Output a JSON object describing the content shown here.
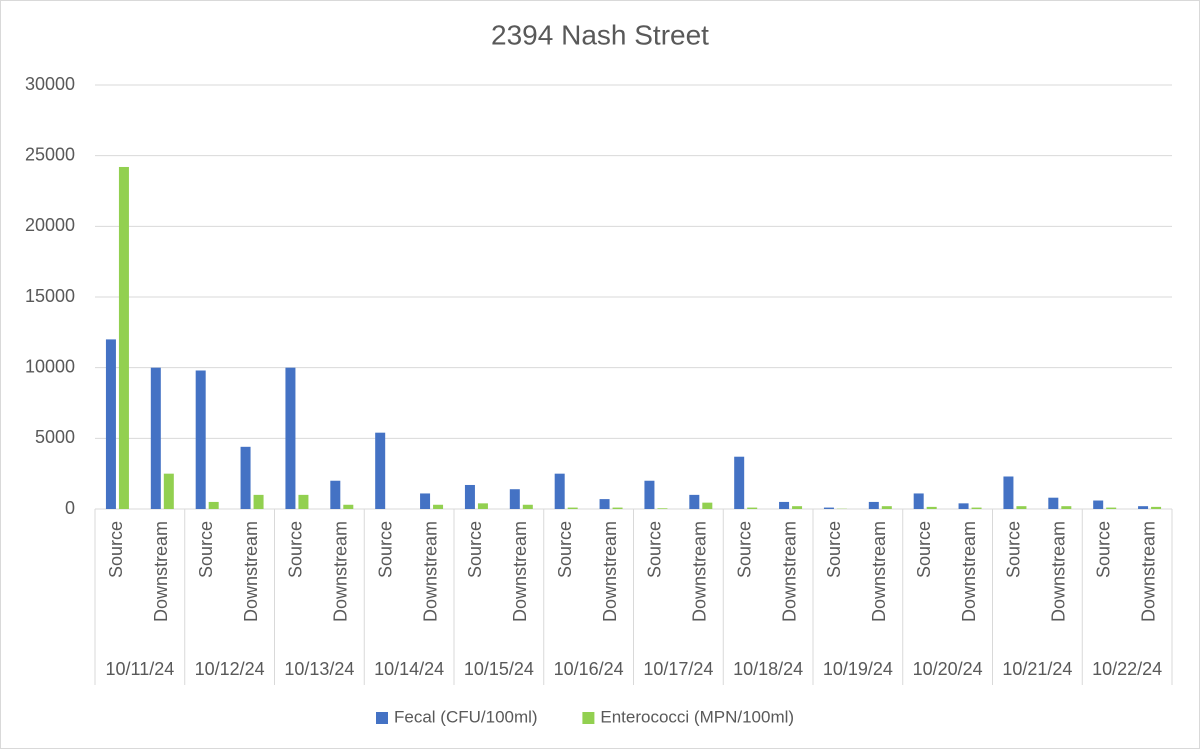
{
  "chart_data": {
    "type": "bar",
    "title": "2394 Nash Street",
    "categories": [
      "Source",
      "Downstream",
      "Source",
      "Downstream",
      "Source",
      "Downstream",
      "Source",
      "Downstream",
      "Source",
      "Downstream",
      "Source",
      "Downstream",
      "Source",
      "Downstream",
      "Source",
      "Downstream",
      "Source",
      "Downstream",
      "Source",
      "Downstream",
      "Source",
      "Downstream",
      "Source",
      "Downstream"
    ],
    "groups": [
      "10/11/24",
      "10/12/24",
      "10/13/24",
      "10/14/24",
      "10/15/24",
      "10/16/24",
      "10/17/24",
      "10/18/24",
      "10/19/24",
      "10/20/24",
      "10/21/24",
      "10/22/24"
    ],
    "series": [
      {
        "name": "Fecal (CFU/100ml)",
        "color": "#4472c4",
        "values": [
          12000,
          10000,
          9800,
          4400,
          10000,
          2000,
          5400,
          1100,
          1700,
          1400,
          2500,
          700,
          2000,
          1000,
          3700,
          500,
          100,
          500,
          1100,
          400,
          2300,
          800,
          600,
          200
        ]
      },
      {
        "name": "Enterococci (MPN/100ml)",
        "color": "#92d050",
        "values": [
          24200,
          2500,
          500,
          1000,
          1000,
          300,
          0,
          300,
          400,
          300,
          100,
          100,
          50,
          450,
          100,
          200,
          20,
          200,
          150,
          100,
          200,
          200,
          100,
          150
        ]
      }
    ],
    "ylim": [
      0,
      30000
    ],
    "yticks": [
      0,
      5000,
      10000,
      15000,
      20000,
      25000,
      30000
    ],
    "grid": true,
    "legend": "bottom"
  }
}
